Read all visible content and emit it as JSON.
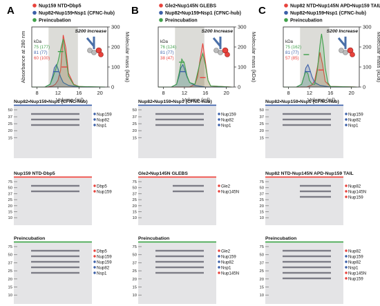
{
  "panels": [
    {
      "letter": "A",
      "legend": [
        {
          "label": "Nup159 NTD•Dbp5",
          "color": "#e8423c"
        },
        {
          "label": "Nup82•Nup159•Nsp1 (CFNC-hub)",
          "color": "#3b5fa8"
        },
        {
          "label": "Preincubation",
          "color": "#3fa04a"
        }
      ],
      "column": "S200 Increase",
      "kda_title": "kDa",
      "kda_entries": [
        {
          "text": "75 (177)",
          "color": "#3fa04a"
        },
        {
          "text": "81 (77)",
          "color": "#3b5fa8"
        },
        {
          "text": "60 (100)",
          "color": "#e8423c"
        }
      ],
      "gels": [
        {
          "title": "Nup82•Nup159•Nsp1 (CFNC-hub)",
          "bar_color": "#3b5fa8",
          "labels": [
            {
              "text": "Nup159",
              "color": "#3b5fa8"
            },
            {
              "text": "Nup82",
              "color": "#3b5fa8"
            },
            {
              "text": "Nsp1",
              "color": "#3b5fa8"
            }
          ]
        },
        {
          "title": "Nup159 NTD-Dbp5",
          "bar_color": "#e8423c",
          "labels": [
            {
              "text": "Dbp5",
              "color": "#e8423c"
            },
            {
              "text": "Nup159",
              "color": "#e8423c"
            }
          ]
        },
        {
          "title": "Preincubation",
          "bar_color": "#3fa04a",
          "labels": [
            {
              "text": "Dbp5",
              "color": "#e8423c"
            },
            {
              "text": "Nup159",
              "color": "#e8423c"
            },
            {
              "text": "Nup159",
              "color": "#3b5fa8"
            },
            {
              "text": "Nup82",
              "color": "#3b5fa8"
            },
            {
              "text": "Nsp1",
              "color": "#3b5fa8"
            }
          ]
        }
      ]
    },
    {
      "letter": "B",
      "legend": [
        {
          "label": "Gle2•Nup145N GLEBS",
          "color": "#e8423c"
        },
        {
          "label": "Nup82•Nup159•Nsp1 (CFNC-hub)",
          "color": "#3b5fa8"
        },
        {
          "label": "Preincubation",
          "color": "#3fa04a"
        }
      ],
      "column": "S200 Increase",
      "kda_title": "kDa",
      "kda_entries": [
        {
          "text": "76 (124)",
          "color": "#3fa04a"
        },
        {
          "text": "81 (77)",
          "color": "#3b5fa8"
        },
        {
          "text": "38 (47)",
          "color": "#e8423c"
        }
      ],
      "gels": [
        {
          "title": "Nup82•Nup159•Nsp1 (CFNC-hub)",
          "bar_color": "#3b5fa8",
          "labels": [
            {
              "text": "Nup159",
              "color": "#3b5fa8"
            },
            {
              "text": "Nup82",
              "color": "#3b5fa8"
            },
            {
              "text": "Nsp1",
              "color": "#3b5fa8"
            }
          ]
        },
        {
          "title": "Gle2•Nup145N GLEBS",
          "bar_color": "#e8423c",
          "labels": [
            {
              "text": "Gle2",
              "color": "#e8423c"
            },
            {
              "text": "Nup145N",
              "color": "#e8423c"
            }
          ]
        },
        {
          "title": "Preincubation",
          "bar_color": "#3fa04a",
          "labels": [
            {
              "text": "Gle2",
              "color": "#e8423c"
            },
            {
              "text": "Nup159",
              "color": "#3b5fa8"
            },
            {
              "text": "Nup82",
              "color": "#3b5fa8"
            },
            {
              "text": "Nsp1",
              "color": "#3b5fa8"
            },
            {
              "text": "Nup145N",
              "color": "#e8423c"
            }
          ]
        }
      ]
    },
    {
      "letter": "C",
      "legend": [
        {
          "label": "Nup82 NTD•Nup145N APD•Nup159 TAIL",
          "color": "#e8423c"
        },
        {
          "label": "Nup82•Nup159•Nsp1 (CFNC-hub)",
          "color": "#3b5fa8"
        },
        {
          "label": "Preincubation",
          "color": "#3fa04a"
        }
      ],
      "column": "S200 Increase",
      "kda_title": "kDa",
      "kda_entries": [
        {
          "text": "75 (162)",
          "color": "#3fa04a"
        },
        {
          "text": "81 (77)",
          "color": "#3b5fa8"
        },
        {
          "text": "57 (85)",
          "color": "#e8423c"
        }
      ],
      "gels": [
        {
          "title": "Nup82•Nup159•Nsp1 (CFNC-hub)",
          "bar_color": "#3b5fa8",
          "labels": [
            {
              "text": "Nup159",
              "color": "#3b5fa8"
            },
            {
              "text": "Nup82",
              "color": "#3b5fa8"
            },
            {
              "text": "Nsp1",
              "color": "#3b5fa8"
            }
          ]
        },
        {
          "title": "Nup82 NTD-Nup145N APD-Nup159 TAIL",
          "bar_color": "#e8423c",
          "labels": [
            {
              "text": "Nup82",
              "color": "#e8423c"
            },
            {
              "text": "Nup145N",
              "color": "#e8423c"
            },
            {
              "text": "Nup159",
              "color": "#e8423c"
            }
          ]
        },
        {
          "title": "Preincubation",
          "bar_color": "#3fa04a",
          "labels": [
            {
              "text": "Nup82",
              "color": "#e8423c"
            },
            {
              "text": "Nup159",
              "color": "#3b5fa8"
            },
            {
              "text": "Nup82",
              "color": "#3b5fa8"
            },
            {
              "text": "Nsp1",
              "color": "#3b5fa8"
            },
            {
              "text": "Nup145N",
              "color": "#e8423c"
            },
            {
              "text": "Nup159",
              "color": "#e8423c"
            }
          ]
        }
      ]
    }
  ],
  "ladder": {
    "gel1": [
      "50",
      "37",
      "25",
      "20",
      "15"
    ],
    "gel2": [
      "75",
      "50",
      "37",
      "25",
      "20",
      "15",
      "10"
    ],
    "gel3": [
      "75",
      "50",
      "37",
      "25",
      "20",
      "15",
      "10"
    ]
  },
  "chart_data": {
    "type": "line",
    "title": "",
    "xlabel": "Volume (ml)",
    "ylabel": "Absorbance at 280 nm",
    "y2label": "Molecular mass (kDa)",
    "x_ticks": [
      8,
      12,
      16,
      20
    ],
    "y2_ticks": [
      0,
      100,
      200,
      300
    ],
    "xlim": [
      7,
      21.5
    ],
    "y2lim": [
      0,
      300
    ],
    "shaded_region": [
      10.2,
      15.8
    ],
    "panels": [
      {
        "panel": "A",
        "series": [
          {
            "name": "Nup159 NTD•Dbp5",
            "color": "#e8423c",
            "x": [
              7,
              10,
              11,
              11.5,
              12,
              12.5,
              13,
              13.5,
              14,
              15,
              16,
              18,
              21
            ],
            "y": [
              0,
              0,
              0.02,
              0.05,
              0.12,
              0.3,
              0.93,
              0.7,
              0.25,
              0.05,
              0.01,
              0,
              0
            ]
          },
          {
            "name": "Nup82•Nup159•Nsp1 (CFNC-hub)",
            "color": "#3b5fa8",
            "x": [
              7,
              9.5,
              10.5,
              11,
              11.3,
              11.7,
              12,
              12.5,
              13,
              14,
              16,
              21
            ],
            "y": [
              0,
              0,
              0.05,
              0.2,
              0.34,
              0.4,
              0.33,
              0.18,
              0.08,
              0.03,
              0,
              0
            ]
          },
          {
            "name": "Preincubation",
            "color": "#3fa04a",
            "x": [
              7,
              9.5,
              10.5,
              11,
              11.5,
              12,
              12.5,
              13,
              13.5,
              14,
              15,
              16,
              21
            ],
            "y": [
              0,
              0,
              0.05,
              0.16,
              0.3,
              0.45,
              0.66,
              0.86,
              0.55,
              0.2,
              0.04,
              0.01,
              0
            ]
          }
        ],
        "mass_points": [
          {
            "series": "Preincubation",
            "x": 12.5,
            "y": 177
          },
          {
            "series": "Nup159 NTD•Dbp5",
            "x": 13.2,
            "y": 100
          },
          {
            "series": "Nup82•Nup159•Nsp1 (CFNC-hub)",
            "x": 11.6,
            "y": 77
          }
        ]
      },
      {
        "panel": "B",
        "series": [
          {
            "name": "Gle2•Nup145N GLEBS",
            "color": "#e8423c",
            "x": [
              7,
              13,
              14,
              14.5,
              15,
              15.5,
              16,
              16.5,
              17,
              21
            ],
            "y": [
              0,
              0,
              0.05,
              0.18,
              0.5,
              0.78,
              0.45,
              0.12,
              0.02,
              0
            ]
          },
          {
            "name": "Nup82•Nup159•Nsp1 (CFNC-hub)",
            "color": "#3b5fa8",
            "x": [
              7,
              9.5,
              10.5,
              11,
              11.3,
              11.7,
              12,
              12.5,
              13,
              14,
              16,
              21
            ],
            "y": [
              0,
              0,
              0.05,
              0.2,
              0.34,
              0.4,
              0.33,
              0.18,
              0.08,
              0.03,
              0,
              0
            ]
          },
          {
            "name": "Preincubation",
            "color": "#3fa04a",
            "x": [
              7,
              9.5,
              10.5,
              11,
              11.5,
              12,
              12.5,
              13,
              14,
              15,
              15.5,
              16,
              16.5,
              17,
              21
            ],
            "y": [
              0,
              0,
              0.05,
              0.25,
              0.5,
              0.42,
              0.2,
              0.08,
              0.05,
              0.45,
              0.6,
              0.4,
              0.12,
              0.02,
              0
            ]
          }
        ],
        "mass_points": [
          {
            "series": "Preincubation",
            "x": 11.5,
            "y": 124
          },
          {
            "series": "Nup82•Nup159•Nsp1 (CFNC-hub)",
            "x": 11.7,
            "y": 77
          },
          {
            "series": "Gle2•Nup145N GLEBS",
            "x": 15.5,
            "y": 47
          }
        ]
      },
      {
        "panel": "C",
        "series": [
          {
            "name": "Nup82 NTD•Nup145N APD•Nup159 TAIL",
            "color": "#e8423c",
            "x": [
              7,
              11.5,
              12.5,
              13,
              13.5,
              14,
              14.5,
              15,
              16,
              21
            ],
            "y": [
              0,
              0,
              0.04,
              0.12,
              0.35,
              0.62,
              0.4,
              0.1,
              0.01,
              0
            ]
          },
          {
            "name": "Nup82•Nup159•Nsp1 (CFNC-hub)",
            "color": "#3b5fa8",
            "x": [
              7,
              9.5,
              10.5,
              11,
              11.3,
              11.7,
              12,
              12.5,
              13,
              14,
              16,
              21
            ],
            "y": [
              0,
              0,
              0.05,
              0.2,
              0.34,
              0.4,
              0.33,
              0.18,
              0.08,
              0.03,
              0,
              0
            ]
          },
          {
            "name": "Preincubation",
            "color": "#3fa04a",
            "x": [
              7,
              9.5,
              10.5,
              11,
              11.3,
              11.7,
              12,
              12.5,
              13,
              13.5,
              14,
              14.3,
              14.7,
              15,
              15.5,
              16,
              21
            ],
            "y": [
              0,
              0,
              0.05,
              0.2,
              0.28,
              0.24,
              0.12,
              0.05,
              0.05,
              0.3,
              0.75,
              0.95,
              0.7,
              0.35,
              0.08,
              0.01,
              0
            ]
          }
        ],
        "mass_points": [
          {
            "series": "Preincubation",
            "x": 11.4,
            "y": 162
          },
          {
            "series": "Nup82•Nup159•Nsp1 (CFNC-hub)",
            "x": 11.7,
            "y": 77
          },
          {
            "series": "Nup82 NTD•Nup145N APD•Nup159 TAIL",
            "x": 14.2,
            "y": 85
          }
        ]
      }
    ]
  }
}
